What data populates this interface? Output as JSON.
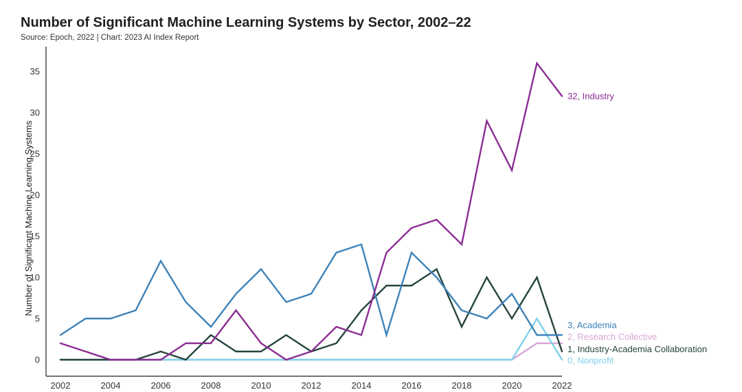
{
  "header": {
    "title": "Number of Significant Machine Learning Systems by Sector, 2002–22",
    "subtitle": "Source: Epoch, 2022 | Chart: 2023 AI Index Report"
  },
  "chart_data": {
    "type": "line",
    "title": "Number of Significant Machine Learning Systems by Sector, 2002–22",
    "ylabel": "Number of Significant Machine Learning Systems",
    "xlabel": "",
    "x": [
      2002,
      2003,
      2004,
      2005,
      2006,
      2007,
      2008,
      2009,
      2010,
      2011,
      2012,
      2013,
      2014,
      2015,
      2016,
      2017,
      2018,
      2019,
      2020,
      2021,
      2022
    ],
    "xticks": [
      2002,
      2004,
      2006,
      2008,
      2010,
      2012,
      2014,
      2016,
      2018,
      2020,
      2022
    ],
    "yticks": [
      0,
      5,
      10,
      15,
      20,
      25,
      30,
      35
    ],
    "xlim": [
      2002,
      2022
    ],
    "ylim": [
      -2,
      38
    ],
    "grid": false,
    "legend": "end-of-line labels",
    "series": [
      {
        "name": "Research Collective",
        "end_label": "2, Research Collective",
        "color": "#d9a6d6",
        "values": [
          0,
          0,
          0,
          0,
          0,
          0,
          0,
          0,
          0,
          0,
          0,
          0,
          0,
          0,
          0,
          0,
          0,
          0,
          0,
          2,
          2
        ]
      },
      {
        "name": "Nonprofit",
        "end_label": "0, Nonprofit",
        "color": "#7fd0ea",
        "values": [
          0,
          0,
          0,
          0,
          0,
          0,
          0,
          0,
          0,
          0,
          0,
          0,
          0,
          0,
          0,
          0,
          0,
          0,
          0,
          5,
          0
        ]
      },
      {
        "name": "Industry-Academia Collaboration",
        "end_label": "1, Industry-Academia Collaboration",
        "color": "#24433c",
        "values": [
          0,
          0,
          0,
          0,
          1,
          0,
          3,
          1,
          1,
          3,
          1,
          2,
          6,
          9,
          9,
          11,
          4,
          10,
          5,
          10,
          1
        ]
      },
      {
        "name": "Academia",
        "end_label": "3, Academia",
        "color": "#3d82b8",
        "values": [
          3,
          5,
          5,
          6,
          12,
          7,
          4,
          8,
          11,
          7,
          8,
          13,
          14,
          3,
          13,
          10,
          6,
          5,
          8,
          3,
          3
        ]
      },
      {
        "name": "Industry",
        "end_label": "32, Industry",
        "color": "#8a2c93",
        "values": [
          2,
          1,
          0,
          0,
          0,
          2,
          2,
          6,
          2,
          0,
          1,
          4,
          3,
          13,
          16,
          17,
          14,
          29,
          23,
          36,
          32
        ]
      }
    ]
  }
}
